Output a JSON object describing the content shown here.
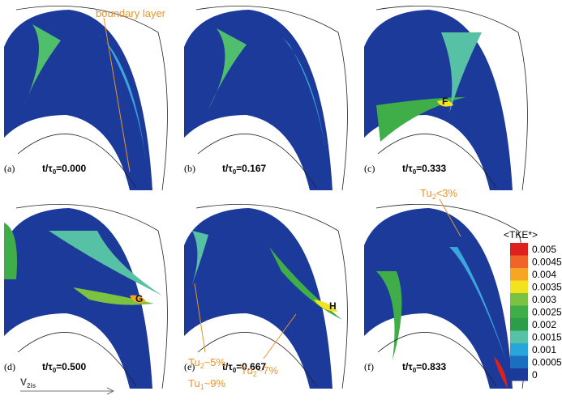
{
  "time_var": "t/τ",
  "time_sub": "0",
  "panels": [
    {
      "label": "(a)",
      "time": "=0.000"
    },
    {
      "label": "(b)",
      "time": "=0.167"
    },
    {
      "label": "(c)",
      "time": "=0.333"
    },
    {
      "label": "(d)",
      "time": "=0.500"
    },
    {
      "label": "(e)",
      "time": "=0.667"
    },
    {
      "label": "(f)",
      "time": "=0.833"
    }
  ],
  "annotations": {
    "boundary_layer": "boundary layer",
    "F": "F",
    "G": "G",
    "H": "H",
    "tu_a": {
      "text": "Tu",
      "sub": "2",
      "rest": "~5%"
    },
    "tu_b": {
      "text": "Tu",
      "sub": "1",
      "rest": "~9%"
    },
    "tu_c": {
      "text": "Tu",
      "sub": "2",
      "rest": "~7%"
    },
    "tu_d": {
      "text": "Tu",
      "sub": "2",
      "rest": "<3%"
    }
  },
  "velocity": {
    "text": "V",
    "sub": "2is"
  },
  "colorbar": {
    "title": "<TKE*>",
    "ticks": [
      0.005,
      0.0045,
      0.004,
      0.0035,
      0.003,
      0.0025,
      0.002,
      0.0015,
      0.001,
      0.0005,
      0
    ],
    "colors": [
      "#e0201c",
      "#f0642a",
      "#f7a623",
      "#f3e21f",
      "#7cc242",
      "#3fae49",
      "#2e9d4a",
      "#56c1a4",
      "#28a6db",
      "#1b6fc0",
      "#1c3a9a"
    ]
  }
}
